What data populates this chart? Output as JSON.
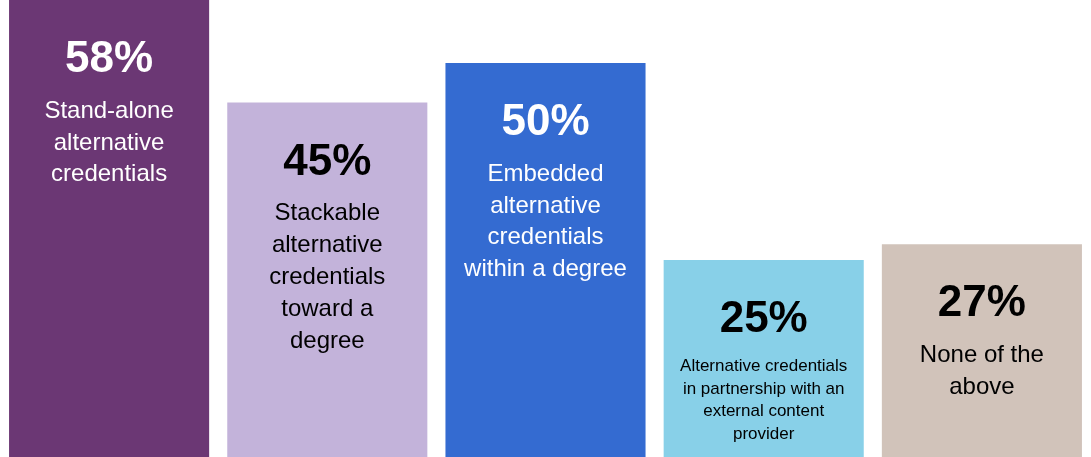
{
  "chart_data": {
    "type": "bar",
    "categories": [
      "Stand-alone alternative credentials",
      "Stackable alternative credentials toward a degree",
      "Embedded alternative credentials within a degree",
      "Alternative credentials in partnership with an external content provider",
      "None of the above"
    ],
    "values": [
      58,
      45,
      50,
      25,
      27
    ],
    "value_labels": [
      "58%",
      "45%",
      "50%",
      "25%",
      "27%"
    ],
    "colors": [
      "#6b3774",
      "#c3b3da",
      "#346bd1",
      "#88d0e8",
      "#d1c3ba"
    ]
  }
}
